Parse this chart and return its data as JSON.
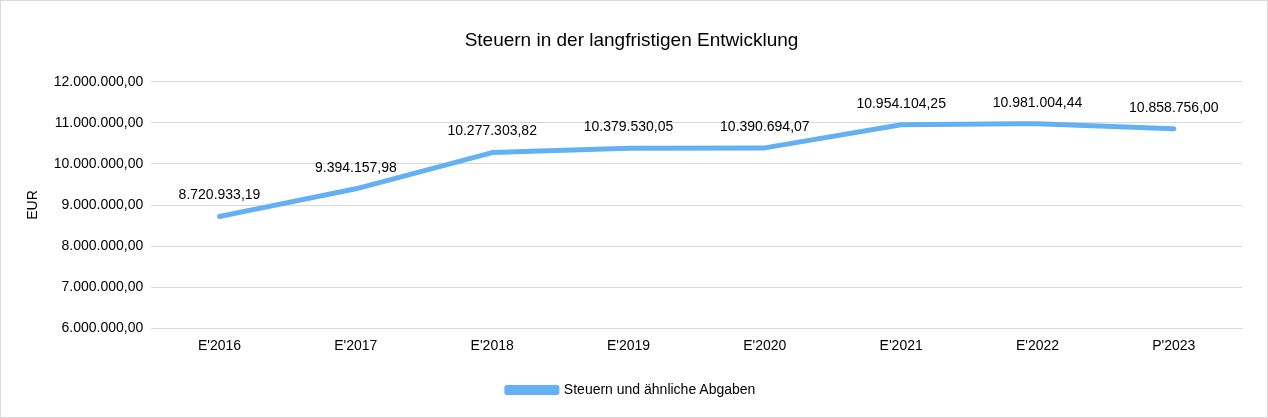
{
  "chart_data": {
    "type": "line",
    "title": "Steuern in der langfristigen Entwicklung",
    "ylabel": "EUR",
    "categories": [
      "E'2016",
      "E'2017",
      "E'2018",
      "E'2019",
      "E'2020",
      "E'2021",
      "E'2022",
      "P'2023"
    ],
    "series": [
      {
        "name": "Steuern und ähnliche Abgaben",
        "color": "#63b0f2",
        "values": [
          8720933.19,
          9394157.98,
          10277303.82,
          10379530.05,
          10390694.07,
          10954104.25,
          10981004.44,
          10858756.0
        ],
        "value_labels": [
          "8.720.933,19",
          "9.394.157,98",
          "10.277.303,82",
          "10.379.530,05",
          "10.390.694,07",
          "10.954.104,25",
          "10.981.004,44",
          "10.858.756,00"
        ]
      }
    ],
    "ylim": [
      6000000,
      12000000
    ],
    "yticks": [
      {
        "value": 6000000,
        "label": "6.000.000,00"
      },
      {
        "value": 7000000,
        "label": "7.000.000,00"
      },
      {
        "value": 8000000,
        "label": "8.000.000,00"
      },
      {
        "value": 9000000,
        "label": "9.000.000,00"
      },
      {
        "value": 10000000,
        "label": "10.000.000,00"
      },
      {
        "value": 11000000,
        "label": "11.000.000,00"
      },
      {
        "value": 12000000,
        "label": "12.000.000,00"
      }
    ],
    "grid": "y",
    "legend": "bottom",
    "marker": "none",
    "line_style": "solid"
  }
}
